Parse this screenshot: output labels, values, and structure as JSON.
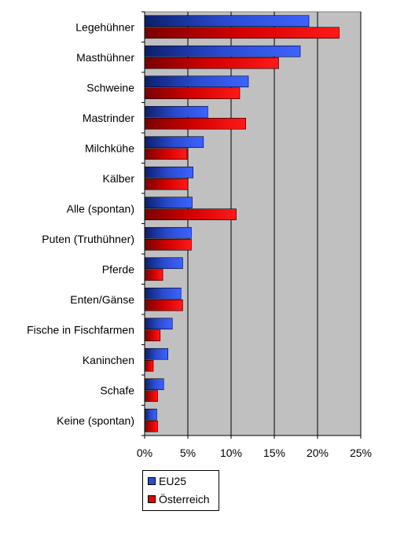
{
  "chart_data": {
    "type": "bar",
    "orientation": "horizontal",
    "categories": [
      "Legehühner",
      "Masthühner",
      "Schweine",
      "Mastrinder",
      "Milchkühe",
      "Kälber",
      "Alle (spontan)",
      "Puten (Truthühner)",
      "Pferde",
      "Enten/Gänse",
      "Fische in Fischfarmen",
      "Kaninchen",
      "Schafe",
      "Keine (spontan)"
    ],
    "series": [
      {
        "name": "EU25",
        "color": "#1f3fd9",
        "values": [
          19,
          18,
          12,
          7.3,
          6.8,
          5.6,
          5.5,
          5.4,
          4.4,
          4.2,
          3.2,
          2.7,
          2.2,
          1.4
        ]
      },
      {
        "name": "Österreich",
        "color": "#e00000",
        "values": [
          22.5,
          15.5,
          11,
          11.7,
          4.9,
          5,
          10.6,
          5.4,
          2.1,
          4.4,
          1.8,
          1,
          1.5,
          1.5
        ]
      }
    ],
    "xlim": [
      0,
      25
    ],
    "xticks": [
      "0%",
      "5%",
      "10%",
      "15%",
      "20%",
      "25%"
    ],
    "xlabel": "",
    "ylabel": "",
    "title": "",
    "grid": true,
    "plot_background": "#c0c0c0",
    "legend": {
      "position": "bottom-left",
      "entries": [
        "EU25",
        "Österreich"
      ]
    }
  }
}
